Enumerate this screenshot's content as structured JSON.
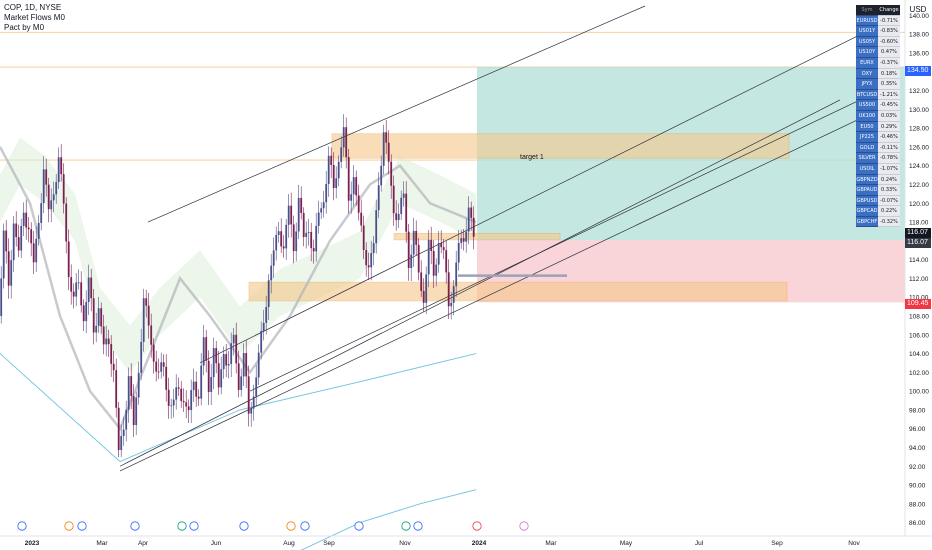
{
  "header": {
    "symbol_line": "COP, 1D, NYSE",
    "indicator_1": "Market Flows M0",
    "indicator_2": "Pact by M0",
    "currency": "USD"
  },
  "annotations": {
    "target_label": "target 1"
  },
  "price_badges": {
    "target": "134.50",
    "last": "116.07",
    "last2": "116.07",
    "stop": "109.45"
  },
  "watchlist": {
    "header_symbol": "Sym",
    "header_change": "Change %",
    "rows": [
      {
        "symbol": "EURUSD",
        "change": "-0.71%"
      },
      {
        "symbol": "US01Y",
        "change": "-0.83%"
      },
      {
        "symbol": "US05Y",
        "change": "-0.60%"
      },
      {
        "symbol": "US10Y",
        "change": "0.47%"
      },
      {
        "symbol": "EURX",
        "change": "-0.37%"
      },
      {
        "symbol": "DXY",
        "change": "0.18%"
      },
      {
        "symbol": "JPYX",
        "change": "0.35%"
      },
      {
        "symbol": "BTCUSD",
        "change": "-1.21%"
      },
      {
        "symbol": "US500",
        "change": "-0.45%"
      },
      {
        "symbol": "UK100",
        "change": "0.03%"
      },
      {
        "symbol": "EU50",
        "change": "0.29%"
      },
      {
        "symbol": "JP225",
        "change": "-0.46%"
      },
      {
        "symbol": "GOLD",
        "change": "-0.11%"
      },
      {
        "symbol": "SILVER",
        "change": "-0.78%"
      },
      {
        "symbol": "USOIL",
        "change": "-1.07%"
      },
      {
        "symbol": "GBPNZD",
        "change": "0.24%"
      },
      {
        "symbol": "GBPAUD",
        "change": "0.33%"
      },
      {
        "symbol": "GBPUSD",
        "change": "-0.07%"
      },
      {
        "symbol": "GBPCAD",
        "change": "0.22%"
      },
      {
        "symbol": "GBPCHF",
        "change": "-0.32%"
      }
    ]
  },
  "chart_data": {
    "type": "candlestick",
    "title": "COP, 1D, NYSE",
    "ylim": [
      85,
      141
    ],
    "y_ticks": [
      86,
      88,
      90,
      92,
      94,
      96,
      98,
      100,
      102,
      104,
      106,
      108,
      110,
      112,
      114,
      116,
      118,
      120,
      122,
      124,
      126,
      128,
      130,
      132,
      134,
      136,
      138,
      140
    ],
    "x_ticks": [
      "2023",
      "Mar",
      "Apr",
      "Jun",
      "Aug",
      "Sep",
      "Nov",
      "2024",
      "Mar",
      "May",
      "Jul",
      "Sep",
      "Nov"
    ],
    "close_path": [
      [
        0,
        108
      ],
      [
        5,
        116
      ],
      [
        10,
        112
      ],
      [
        15,
        118
      ],
      [
        20,
        114
      ],
      [
        25,
        120
      ],
      [
        30,
        117
      ],
      [
        35,
        113
      ],
      [
        40,
        119
      ],
      [
        45,
        123
      ],
      [
        50,
        119
      ],
      [
        55,
        122
      ],
      [
        60,
        124
      ],
      [
        65,
        120
      ],
      [
        70,
        113
      ],
      [
        75,
        109
      ],
      [
        80,
        112
      ],
      [
        85,
        108
      ],
      [
        90,
        111
      ],
      [
        95,
        107
      ],
      [
        100,
        109
      ],
      [
        105,
        104
      ],
      [
        110,
        106
      ],
      [
        115,
        102
      ],
      [
        120,
        93
      ],
      [
        125,
        97
      ],
      [
        130,
        101
      ],
      [
        135,
        96
      ],
      [
        140,
        103
      ],
      [
        145,
        109
      ],
      [
        150,
        107
      ],
      [
        155,
        104
      ],
      [
        160,
        101
      ],
      [
        165,
        103
      ],
      [
        170,
        99
      ],
      [
        175,
        98
      ],
      [
        180,
        101
      ],
      [
        185,
        99
      ],
      [
        190,
        97
      ],
      [
        195,
        102
      ],
      [
        200,
        99
      ],
      [
        205,
        105
      ],
      [
        210,
        101
      ],
      [
        215,
        104
      ],
      [
        220,
        100
      ],
      [
        225,
        105
      ],
      [
        230,
        102
      ],
      [
        235,
        106
      ],
      [
        240,
        101
      ],
      [
        245,
        103
      ],
      [
        250,
        98
      ],
      [
        255,
        100
      ],
      [
        260,
        103
      ],
      [
        265,
        108
      ],
      [
        270,
        112
      ],
      [
        275,
        114
      ],
      [
        280,
        118
      ],
      [
        285,
        115
      ],
      [
        290,
        119
      ],
      [
        295,
        116
      ],
      [
        300,
        120
      ],
      [
        305,
        116
      ],
      [
        310,
        118
      ],
      [
        315,
        114
      ],
      [
        320,
        119
      ],
      [
        325,
        121
      ],
      [
        330,
        124
      ],
      [
        335,
        122
      ],
      [
        340,
        125
      ],
      [
        345,
        127
      ],
      [
        350,
        121
      ],
      [
        355,
        123
      ],
      [
        360,
        118
      ],
      [
        365,
        116
      ],
      [
        370,
        113
      ],
      [
        375,
        115
      ],
      [
        380,
        123
      ],
      [
        385,
        127
      ],
      [
        390,
        124
      ],
      [
        395,
        120
      ],
      [
        400,
        118
      ],
      [
        405,
        121
      ],
      [
        410,
        114
      ],
      [
        415,
        116
      ],
      [
        420,
        113
      ],
      [
        425,
        110
      ],
      [
        430,
        115
      ],
      [
        435,
        113
      ],
      [
        440,
        116
      ],
      [
        445,
        114
      ],
      [
        450,
        110
      ],
      [
        455,
        111
      ],
      [
        460,
        115
      ],
      [
        465,
        117
      ],
      [
        470,
        119
      ],
      [
        475,
        116
      ]
    ],
    "channel_lines": [
      {
        "name": "upper-channel-line",
        "points": [
          [
            148,
            118
          ],
          [
            645,
            141
          ]
        ]
      },
      {
        "name": "mid-channel-line",
        "points": [
          [
            200,
            103
          ],
          [
            880,
            139
          ]
        ]
      },
      {
        "name": "channel-line-2",
        "points": [
          [
            120,
            92
          ],
          [
            840,
            131
          ]
        ]
      },
      {
        "name": "channel-line-3",
        "points": [
          [
            250,
            100
          ],
          [
            860,
            131
          ]
        ]
      },
      {
        "name": "lower-channel-line",
        "points": [
          [
            120,
            91.5
          ],
          [
            860,
            129
          ]
        ]
      }
    ],
    "zones": [
      {
        "name": "supply-zone",
        "x": [
          332,
          789
        ],
        "y": [
          124.8,
          127.4
        ]
      },
      {
        "name": "demand-zone",
        "x": [
          249,
          787
        ],
        "y": [
          109.6,
          111.6
        ]
      },
      {
        "name": "entry-zone",
        "x": [
          394,
          560
        ],
        "y": [
          116.1,
          116.8
        ]
      }
    ],
    "position": {
      "entry": 116.07,
      "target": 134.5,
      "stop": 109.45,
      "x": [
        477,
        905
      ]
    },
    "horizontal_levels": [
      138.2,
      134.5,
      124.6
    ]
  }
}
